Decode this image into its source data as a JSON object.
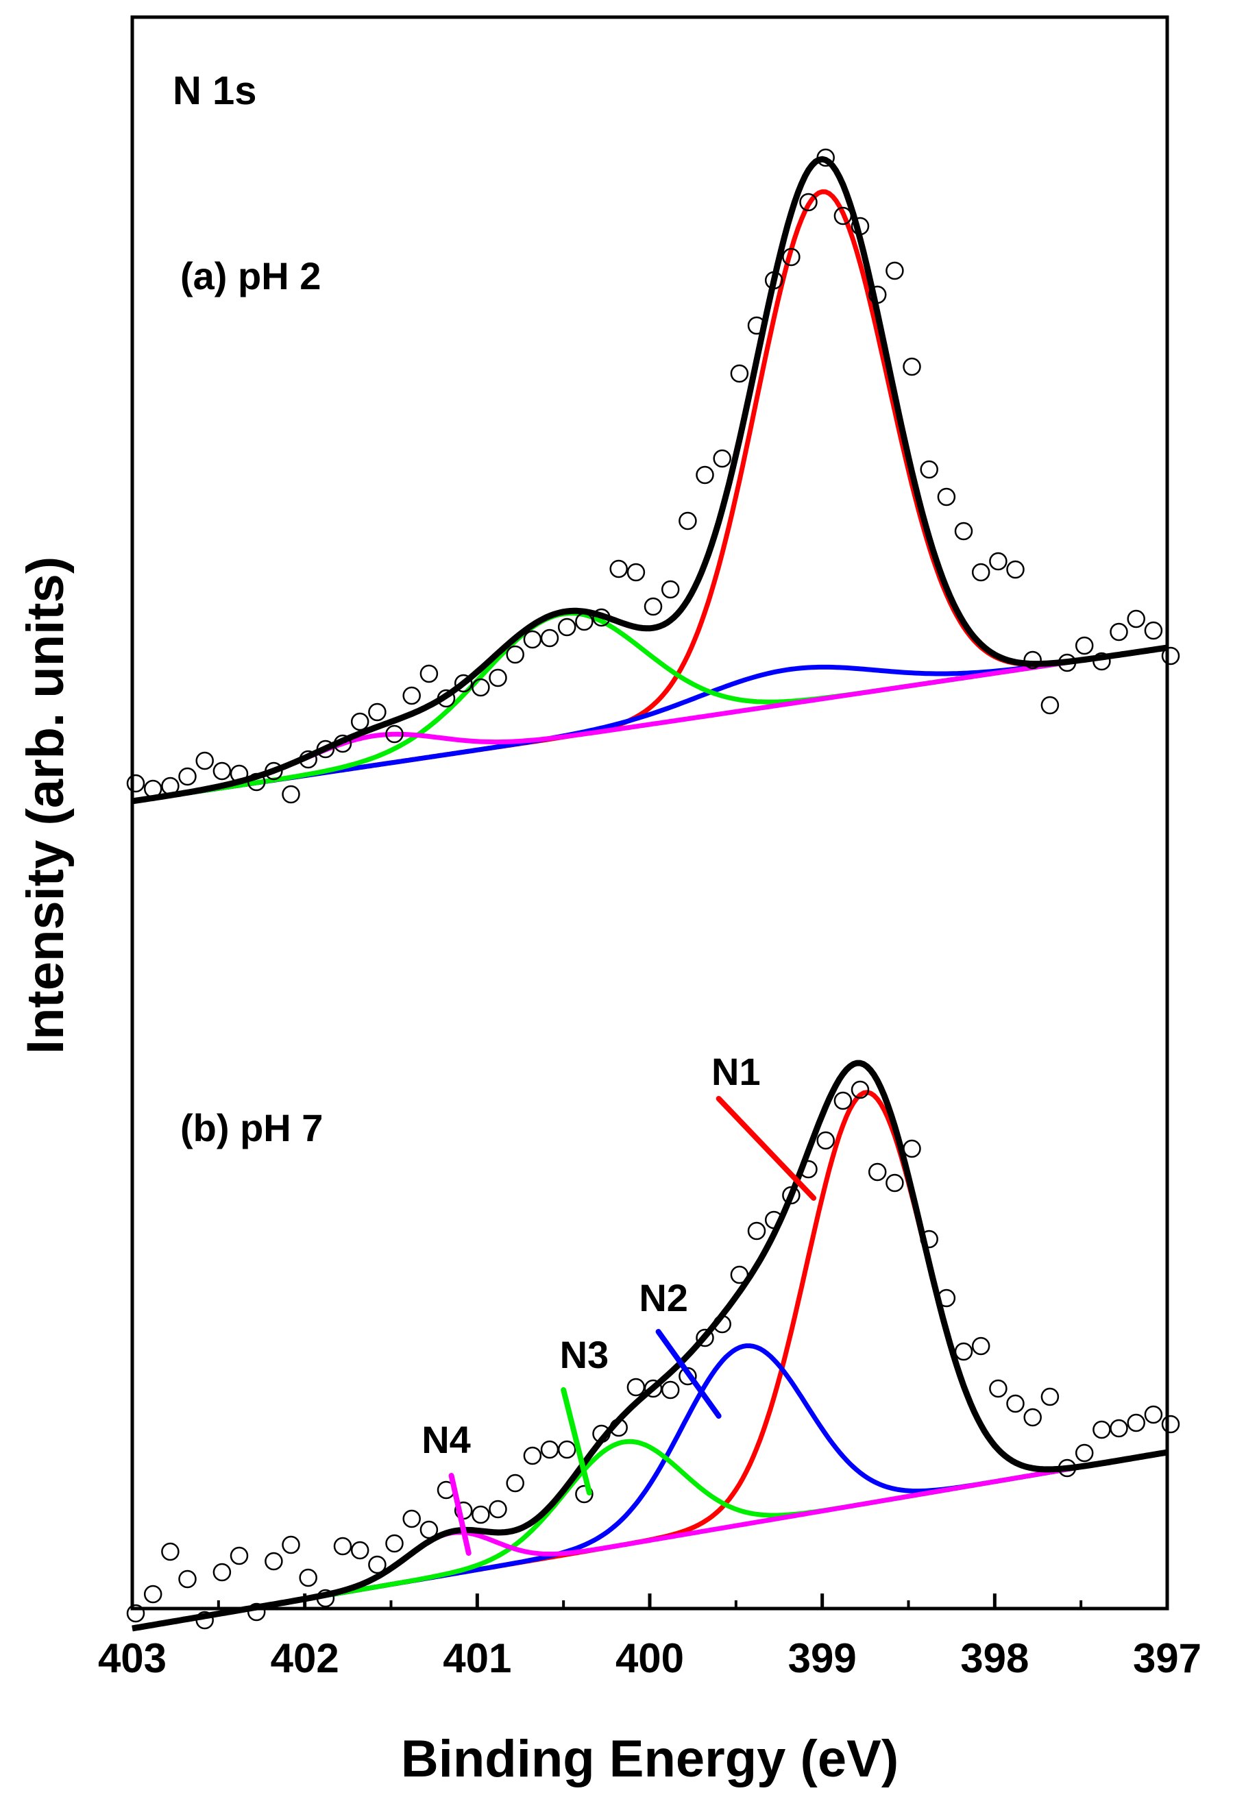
{
  "chart_data": {
    "type": "line",
    "element_label": "N 1s",
    "xlabel": "Binding Energy (eV)",
    "ylabel": "Intensity (arb. units)",
    "xlim": [
      403,
      397
    ],
    "x_reversed": true,
    "x_ticks": [
      "403",
      "402",
      "401",
      "400",
      "399",
      "398",
      "397"
    ],
    "y_ticks": [],
    "grid": false,
    "panels": [
      {
        "id": "a",
        "label": "(a) pH 2",
        "baseline": [
          [
            403,
            2.6
          ],
          [
            397,
            25.0
          ]
        ],
        "components": [
          {
            "name": "N1",
            "color": "#ff0000",
            "center": 399.0,
            "fwhm": 0.9,
            "height": 74.0
          },
          {
            "name": "N2",
            "color": "#0000ff",
            "center": 399.2,
            "fwhm": 1.2,
            "height": 5.0
          },
          {
            "name": "N3",
            "color": "#00ee00",
            "center": 400.5,
            "fwhm": 1.1,
            "height": 18.0
          },
          {
            "name": "N4",
            "color": "#ff00ff",
            "center": 401.6,
            "fwhm": 0.9,
            "height": 4.3
          }
        ],
        "experimental": [
          [
            402.98,
            5.2
          ],
          [
            402.88,
            4.4
          ],
          [
            402.78,
            4.8
          ],
          [
            402.68,
            6.2
          ],
          [
            402.58,
            8.5
          ],
          [
            402.48,
            7.0
          ],
          [
            402.38,
            6.6
          ],
          [
            402.28,
            5.4
          ],
          [
            402.18,
            7.0
          ],
          [
            402.08,
            3.6
          ],
          [
            401.98,
            8.7
          ],
          [
            401.88,
            10.2
          ],
          [
            401.78,
            11.0
          ],
          [
            401.68,
            14.2
          ],
          [
            401.58,
            15.6
          ],
          [
            401.48,
            12.4
          ],
          [
            401.38,
            18.0
          ],
          [
            401.28,
            21.2
          ],
          [
            401.18,
            17.6
          ],
          [
            401.08,
            19.8
          ],
          [
            400.98,
            19.2
          ],
          [
            400.88,
            20.6
          ],
          [
            400.78,
            24.0
          ],
          [
            400.68,
            26.2
          ],
          [
            400.58,
            26.4
          ],
          [
            400.48,
            28.0
          ],
          [
            400.38,
            28.8
          ],
          [
            400.28,
            29.4
          ],
          [
            400.18,
            36.5
          ],
          [
            400.08,
            36.0
          ],
          [
            399.98,
            31.0
          ],
          [
            399.88,
            33.5
          ],
          [
            399.78,
            43.5
          ],
          [
            399.68,
            50.2
          ],
          [
            399.58,
            52.6
          ],
          [
            399.48,
            65.0
          ],
          [
            399.38,
            72.0
          ],
          [
            399.28,
            78.6
          ],
          [
            399.18,
            82.0
          ],
          [
            399.08,
            90.0
          ],
          [
            398.98,
            96.5
          ],
          [
            398.88,
            88.0
          ],
          [
            398.78,
            86.5
          ],
          [
            398.68,
            76.5
          ],
          [
            398.58,
            80.0
          ],
          [
            398.48,
            66.0
          ],
          [
            398.38,
            51.0
          ],
          [
            398.28,
            47.0
          ],
          [
            398.18,
            42.0
          ],
          [
            398.08,
            36.0
          ],
          [
            397.98,
            37.6
          ],
          [
            397.88,
            36.4
          ],
          [
            397.78,
            23.2
          ],
          [
            397.68,
            16.6
          ],
          [
            397.58,
            22.8
          ],
          [
            397.48,
            25.3
          ],
          [
            397.38,
            23.0
          ],
          [
            397.28,
            27.3
          ],
          [
            397.18,
            29.2
          ],
          [
            397.08,
            27.5
          ],
          [
            396.98,
            23.8
          ]
        ]
      },
      {
        "id": "b",
        "label": "(b) pH 7",
        "baseline": [
          [
            403,
            -10.8
          ],
          [
            397,
            14.9
          ]
        ],
        "components": [
          {
            "name": "N1",
            "color": "#ff0000",
            "center": 398.75,
            "fwhm": 0.8,
            "height": 60.0
          },
          {
            "name": "N2",
            "color": "#0000ff",
            "center": 399.45,
            "fwhm": 0.85,
            "height": 26.0
          },
          {
            "name": "N3",
            "color": "#00ee00",
            "center": 400.15,
            "fwhm": 0.8,
            "height": 15.0
          },
          {
            "name": "N4",
            "color": "#ff00ff",
            "center": 401.15,
            "fwhm": 0.6,
            "height": 6.0
          }
        ],
        "peak_labels": [
          {
            "text": "N1",
            "target": [
              399.05,
              52.0
            ],
            "tip": [
              399.6,
              66.5
            ],
            "anchor": [
              399.5,
              68.5
            ]
          },
          {
            "text": "N2",
            "target": [
              399.6,
              20.2
            ],
            "tip": [
              399.95,
              32.5
            ],
            "anchor": [
              399.92,
              35.5
            ]
          },
          {
            "text": "N3",
            "target": [
              400.35,
              9.0
            ],
            "tip": [
              400.5,
              24.0
            ],
            "anchor": [
              400.38,
              27.2
            ]
          },
          {
            "text": "N4",
            "target": [
              401.05,
              0.2
            ],
            "tip": [
              401.15,
              11.5
            ],
            "anchor": [
              401.18,
              14.8
            ]
          }
        ],
        "experimental": [
          [
            402.98,
            -8.6
          ],
          [
            402.88,
            -5.8
          ],
          [
            402.78,
            0.4
          ],
          [
            402.68,
            -3.6
          ],
          [
            402.58,
            -9.6
          ],
          [
            402.48,
            -2.6
          ],
          [
            402.38,
            -0.2
          ],
          [
            402.28,
            -8.4
          ],
          [
            402.18,
            -1.0
          ],
          [
            402.08,
            1.4
          ],
          [
            401.98,
            -3.4
          ],
          [
            401.88,
            -6.4
          ],
          [
            401.78,
            1.2
          ],
          [
            401.68,
            0.6
          ],
          [
            401.58,
            -1.5
          ],
          [
            401.48,
            1.6
          ],
          [
            401.38,
            5.2
          ],
          [
            401.28,
            3.6
          ],
          [
            401.18,
            9.4
          ],
          [
            401.08,
            6.4
          ],
          [
            400.98,
            5.8
          ],
          [
            400.88,
            6.6
          ],
          [
            400.78,
            10.4
          ],
          [
            400.68,
            14.4
          ],
          [
            400.58,
            15.3
          ],
          [
            400.48,
            15.3
          ],
          [
            400.38,
            8.8
          ],
          [
            400.28,
            17.6
          ],
          [
            400.18,
            18.5
          ],
          [
            400.08,
            24.4
          ],
          [
            399.98,
            24.2
          ],
          [
            399.88,
            24.0
          ],
          [
            399.78,
            26.0
          ],
          [
            399.68,
            31.6
          ],
          [
            399.58,
            33.6
          ],
          [
            399.48,
            40.8
          ],
          [
            399.38,
            47.2
          ],
          [
            399.28,
            48.8
          ],
          [
            399.18,
            52.4
          ],
          [
            399.08,
            56.2
          ],
          [
            398.98,
            60.4
          ],
          [
            398.88,
            66.2
          ],
          [
            398.78,
            67.8
          ],
          [
            398.68,
            55.8
          ],
          [
            398.58,
            54.2
          ],
          [
            398.48,
            59.2
          ],
          [
            398.38,
            46.0
          ],
          [
            398.28,
            37.4
          ],
          [
            398.18,
            29.6
          ],
          [
            398.08,
            30.4
          ],
          [
            397.98,
            24.2
          ],
          [
            397.88,
            22.0
          ],
          [
            397.78,
            20.0
          ],
          [
            397.68,
            23.0
          ],
          [
            397.58,
            12.6
          ],
          [
            397.48,
            14.8
          ],
          [
            397.38,
            18.2
          ],
          [
            397.28,
            18.4
          ],
          [
            397.18,
            19.2
          ],
          [
            397.08,
            20.4
          ],
          [
            396.98,
            19.0
          ]
        ]
      }
    ]
  }
}
